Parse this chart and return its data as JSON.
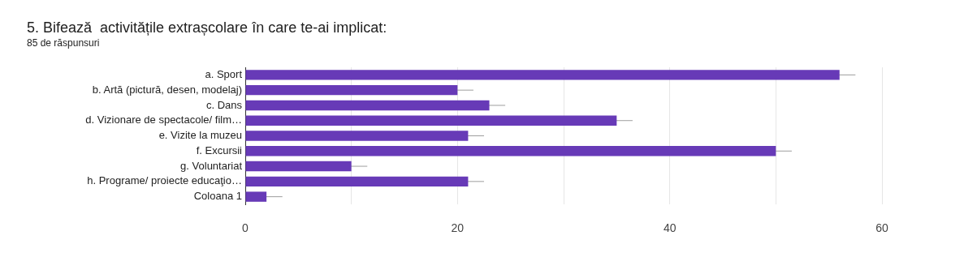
{
  "chart_data": {
    "type": "bar",
    "orientation": "horizontal",
    "title": "5. Bifează  activitățile extrașcolare în care te-ai implicat:",
    "subtitle": "85 de răspunsuri",
    "categories": [
      "a. Sport",
      "b. Artă (pictură, desen, modelaj)",
      "c. Dans",
      "d. Vizionare de spectacole/ film…",
      "e. Vizite la muzeu",
      "f. Excursii",
      "g. Voluntariat",
      "h. Programe/ proiecte educaţio…",
      "Coloana 1"
    ],
    "values": [
      56,
      20,
      23,
      35,
      21,
      50,
      10,
      21,
      2
    ],
    "errors": [
      1.5,
      1.5,
      1.5,
      1.5,
      1.5,
      1.5,
      1.5,
      1.5,
      1.5
    ],
    "color": "#673ab7",
    "xlim": [
      0,
      60
    ],
    "xticks": [
      0,
      {
        "value": 10,
        "label": null
      },
      20,
      {
        "value": 30,
        "label": null
      },
      40,
      {
        "value": 50,
        "label": null
      },
      60
    ],
    "grid": "x",
    "legend": false
  }
}
